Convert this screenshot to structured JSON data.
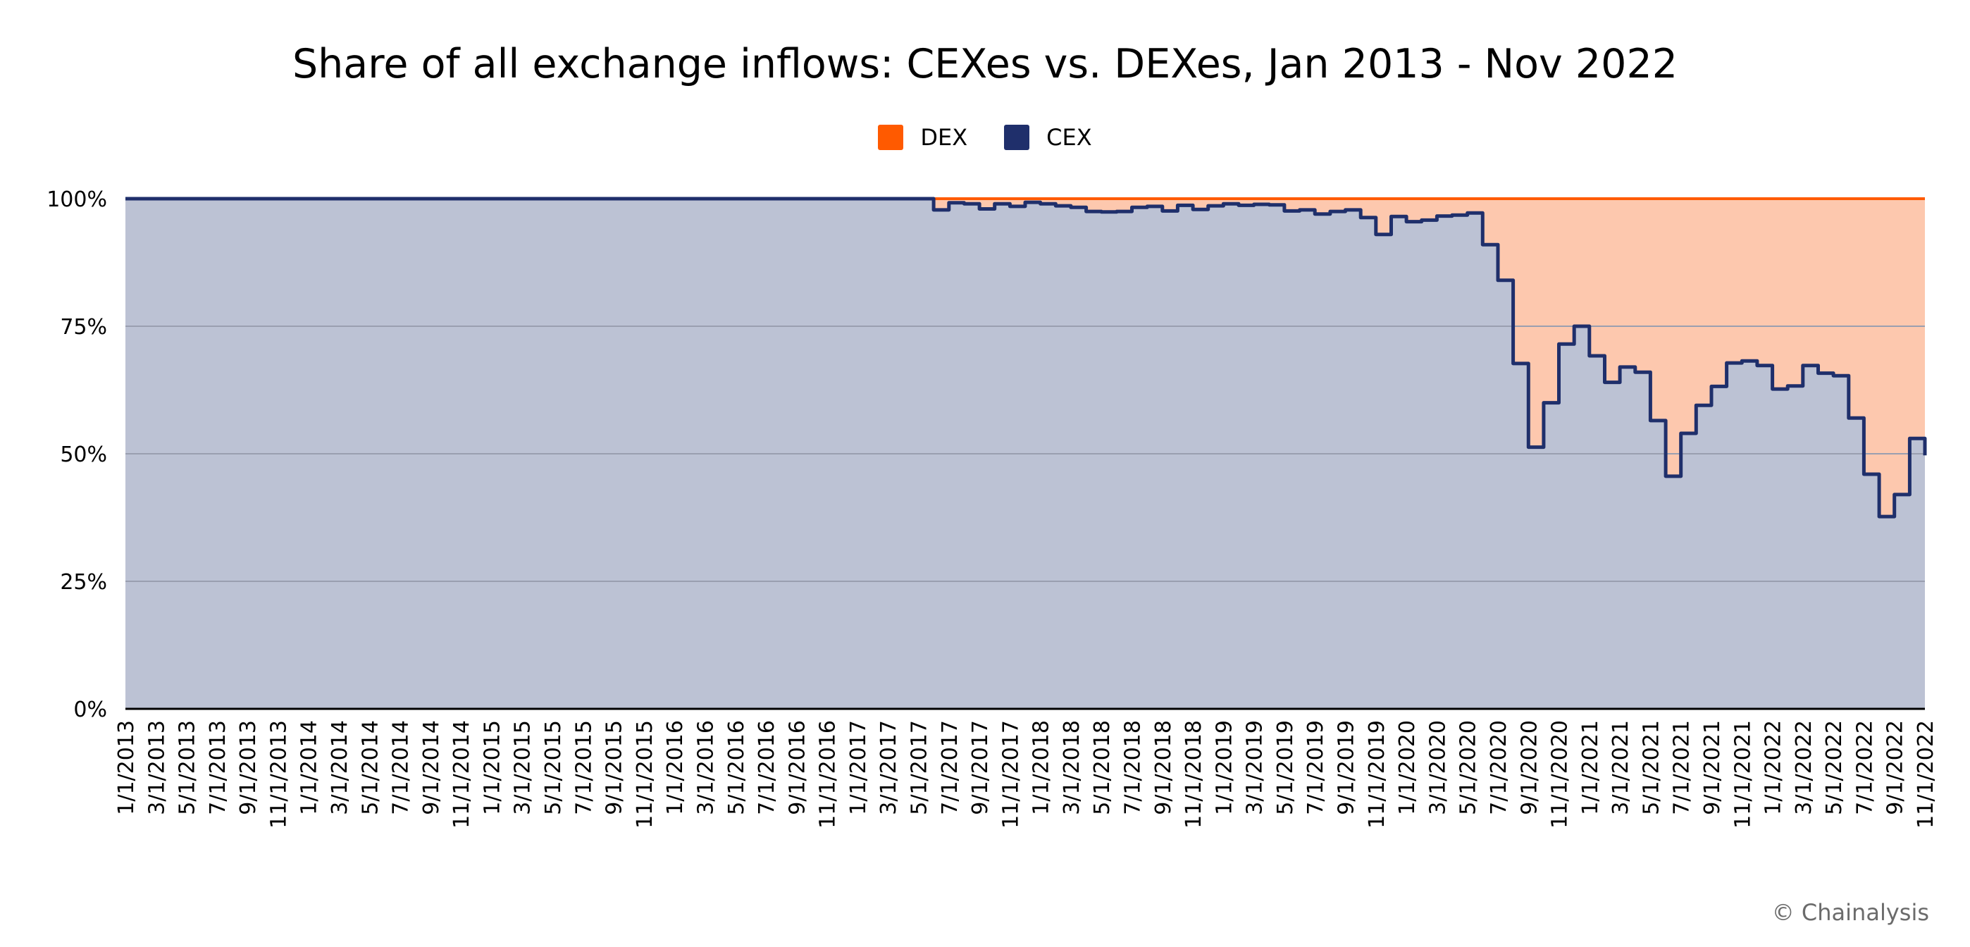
{
  "chart_data": {
    "type": "area",
    "stacked": "percent",
    "step": true,
    "title": "Share of all exchange inflows: CEXes vs. DEXes, Jan 2013 - Nov 2022",
    "legend": {
      "position": "top-center",
      "entries": [
        "DEX",
        "CEX"
      ]
    },
    "colors": {
      "DEX": "#FF5A00",
      "CEX": "#1F2F6B",
      "dex_fill": "#FDC8AE",
      "cex_fill": "#BCC2D4",
      "grid": "#9A9FB0"
    },
    "ylim": [
      0,
      100
    ],
    "y_ticks": [
      0,
      25,
      50,
      75,
      100
    ],
    "y_tick_labels": [
      "0%",
      "25%",
      "50%",
      "75%",
      "100%"
    ],
    "grid": true,
    "xlim": [
      "2013-01-01",
      "2022-11-01"
    ],
    "x_tick_labels": [
      "1/1/2013",
      "3/1/2013",
      "5/1/2013",
      "7/1/2013",
      "9/1/2013",
      "11/1/2013",
      "1/1/2014",
      "3/1/2014",
      "5/1/2014",
      "7/1/2014",
      "9/1/2014",
      "11/1/2014",
      "1/1/2015",
      "3/1/2015",
      "5/1/2015",
      "7/1/2015",
      "9/1/2015",
      "11/1/2015",
      "1/1/2016",
      "3/1/2016",
      "5/1/2016",
      "7/1/2016",
      "9/1/2016",
      "11/1/2016",
      "1/1/2017",
      "3/1/2017",
      "5/1/2017",
      "7/1/2017",
      "9/1/2017",
      "11/1/2017",
      "1/1/2018",
      "3/1/2018",
      "5/1/2018",
      "7/1/2018",
      "9/1/2018",
      "11/1/2018",
      "1/1/2019",
      "3/1/2019",
      "5/1/2019",
      "7/1/2019",
      "9/1/2019",
      "11/1/2019",
      "1/1/2020",
      "3/1/2020",
      "5/1/2020",
      "7/1/2020",
      "9/1/2020",
      "11/1/2020",
      "1/1/2021",
      "3/1/2021",
      "5/1/2021",
      "7/1/2021",
      "9/1/2021",
      "11/1/2021",
      "1/1/2022",
      "3/1/2022",
      "5/1/2022",
      "7/1/2022",
      "9/1/2022",
      "11/1/2022"
    ],
    "series": [
      {
        "name": "CEX",
        "x": [
          "2013-01-01",
          "2017-06-01",
          "2017-07-01",
          "2017-08-01",
          "2017-09-01",
          "2017-10-01",
          "2017-11-01",
          "2017-12-01",
          "2018-01-01",
          "2018-02-01",
          "2018-03-01",
          "2018-04-01",
          "2018-05-01",
          "2018-06-01",
          "2018-07-01",
          "2018-08-01",
          "2018-09-01",
          "2018-10-01",
          "2018-11-01",
          "2018-12-01",
          "2019-01-01",
          "2019-02-01",
          "2019-03-01",
          "2019-04-01",
          "2019-05-01",
          "2019-06-01",
          "2019-07-01",
          "2019-08-01",
          "2019-09-01",
          "2019-10-01",
          "2019-11-01",
          "2019-12-01",
          "2020-01-01",
          "2020-02-01",
          "2020-03-01",
          "2020-04-01",
          "2020-05-01",
          "2020-06-01",
          "2020-07-01",
          "2020-08-01",
          "2020-09-01",
          "2020-10-01",
          "2020-11-01",
          "2020-12-01",
          "2021-01-01",
          "2021-02-01",
          "2021-03-01",
          "2021-04-01",
          "2021-05-01",
          "2021-06-01",
          "2021-07-01",
          "2021-08-01",
          "2021-09-01",
          "2021-10-01",
          "2021-11-01",
          "2021-12-01",
          "2022-01-01",
          "2022-02-01",
          "2022-03-01",
          "2022-04-01",
          "2022-05-01",
          "2022-06-01",
          "2022-07-01",
          "2022-08-01",
          "2022-09-01",
          "2022-10-01",
          "2022-11-01"
        ],
        "values": [
          100,
          97.8,
          99.2,
          99.0,
          98.0,
          99.0,
          98.5,
          99.3,
          99.0,
          98.6,
          98.3,
          97.5,
          97.4,
          97.5,
          98.3,
          98.5,
          97.6,
          98.7,
          97.9,
          98.6,
          99.0,
          98.7,
          98.9,
          98.8,
          97.6,
          97.8,
          97.0,
          97.5,
          97.8,
          96.3,
          93.0,
          96.5,
          95.5,
          95.8,
          96.6,
          96.8,
          97.2,
          91.0,
          84.0,
          67.7,
          51.3,
          60.0,
          71.5,
          75.0,
          69.2,
          64.0,
          67.0,
          66.0,
          56.5,
          45.6,
          54.0,
          59.5,
          63.2,
          67.8,
          68.2,
          67.3,
          62.7,
          63.3,
          67.3,
          65.8,
          65.3,
          57.0,
          46.0,
          37.7,
          42.0,
          53.0,
          49.7
        ]
      },
      {
        "name": "DEX",
        "x": [
          "2013-01-01",
          "2017-06-01",
          "2017-07-01",
          "2017-08-01",
          "2017-09-01",
          "2017-10-01",
          "2017-11-01",
          "2017-12-01",
          "2018-01-01",
          "2018-02-01",
          "2018-03-01",
          "2018-04-01",
          "2018-05-01",
          "2018-06-01",
          "2018-07-01",
          "2018-08-01",
          "2018-09-01",
          "2018-10-01",
          "2018-11-01",
          "2018-12-01",
          "2019-01-01",
          "2019-02-01",
          "2019-03-01",
          "2019-04-01",
          "2019-05-01",
          "2019-06-01",
          "2019-07-01",
          "2019-08-01",
          "2019-09-01",
          "2019-10-01",
          "2019-11-01",
          "2019-12-01",
          "2020-01-01",
          "2020-02-01",
          "2020-03-01",
          "2020-04-01",
          "2020-05-01",
          "2020-06-01",
          "2020-07-01",
          "2020-08-01",
          "2020-09-01",
          "2020-10-01",
          "2020-11-01",
          "2020-12-01",
          "2021-01-01",
          "2021-02-01",
          "2021-03-01",
          "2021-04-01",
          "2021-05-01",
          "2021-06-01",
          "2021-07-01",
          "2021-08-01",
          "2021-09-01",
          "2021-10-01",
          "2021-11-01",
          "2021-12-01",
          "2022-01-01",
          "2022-02-01",
          "2022-03-01",
          "2022-04-01",
          "2022-05-01",
          "2022-06-01",
          "2022-07-01",
          "2022-08-01",
          "2022-09-01",
          "2022-10-01",
          "2022-11-01"
        ],
        "values": [
          0,
          2.2,
          0.8,
          1.0,
          2.0,
          1.0,
          1.5,
          0.7,
          1.0,
          1.4,
          1.7,
          2.5,
          2.6,
          2.5,
          1.7,
          1.5,
          2.4,
          1.3,
          2.1,
          1.4,
          1.0,
          1.3,
          1.1,
          1.2,
          2.4,
          2.2,
          3.0,
          2.5,
          2.2,
          3.7,
          7.0,
          3.5,
          4.5,
          4.2,
          3.4,
          3.2,
          2.8,
          9.0,
          16.0,
          32.3,
          48.7,
          40.0,
          28.5,
          25.0,
          30.8,
          36.0,
          33.0,
          34.0,
          43.5,
          54.4,
          46.0,
          40.5,
          36.8,
          32.2,
          31.8,
          32.7,
          37.3,
          36.7,
          32.7,
          34.2,
          34.7,
          43.0,
          54.0,
          62.3,
          58.0,
          47.0,
          50.3
        ]
      }
    ]
  },
  "legend_labels": {
    "dex": "DEX",
    "cex": "CEX"
  },
  "copyright": "© Chainalysis"
}
